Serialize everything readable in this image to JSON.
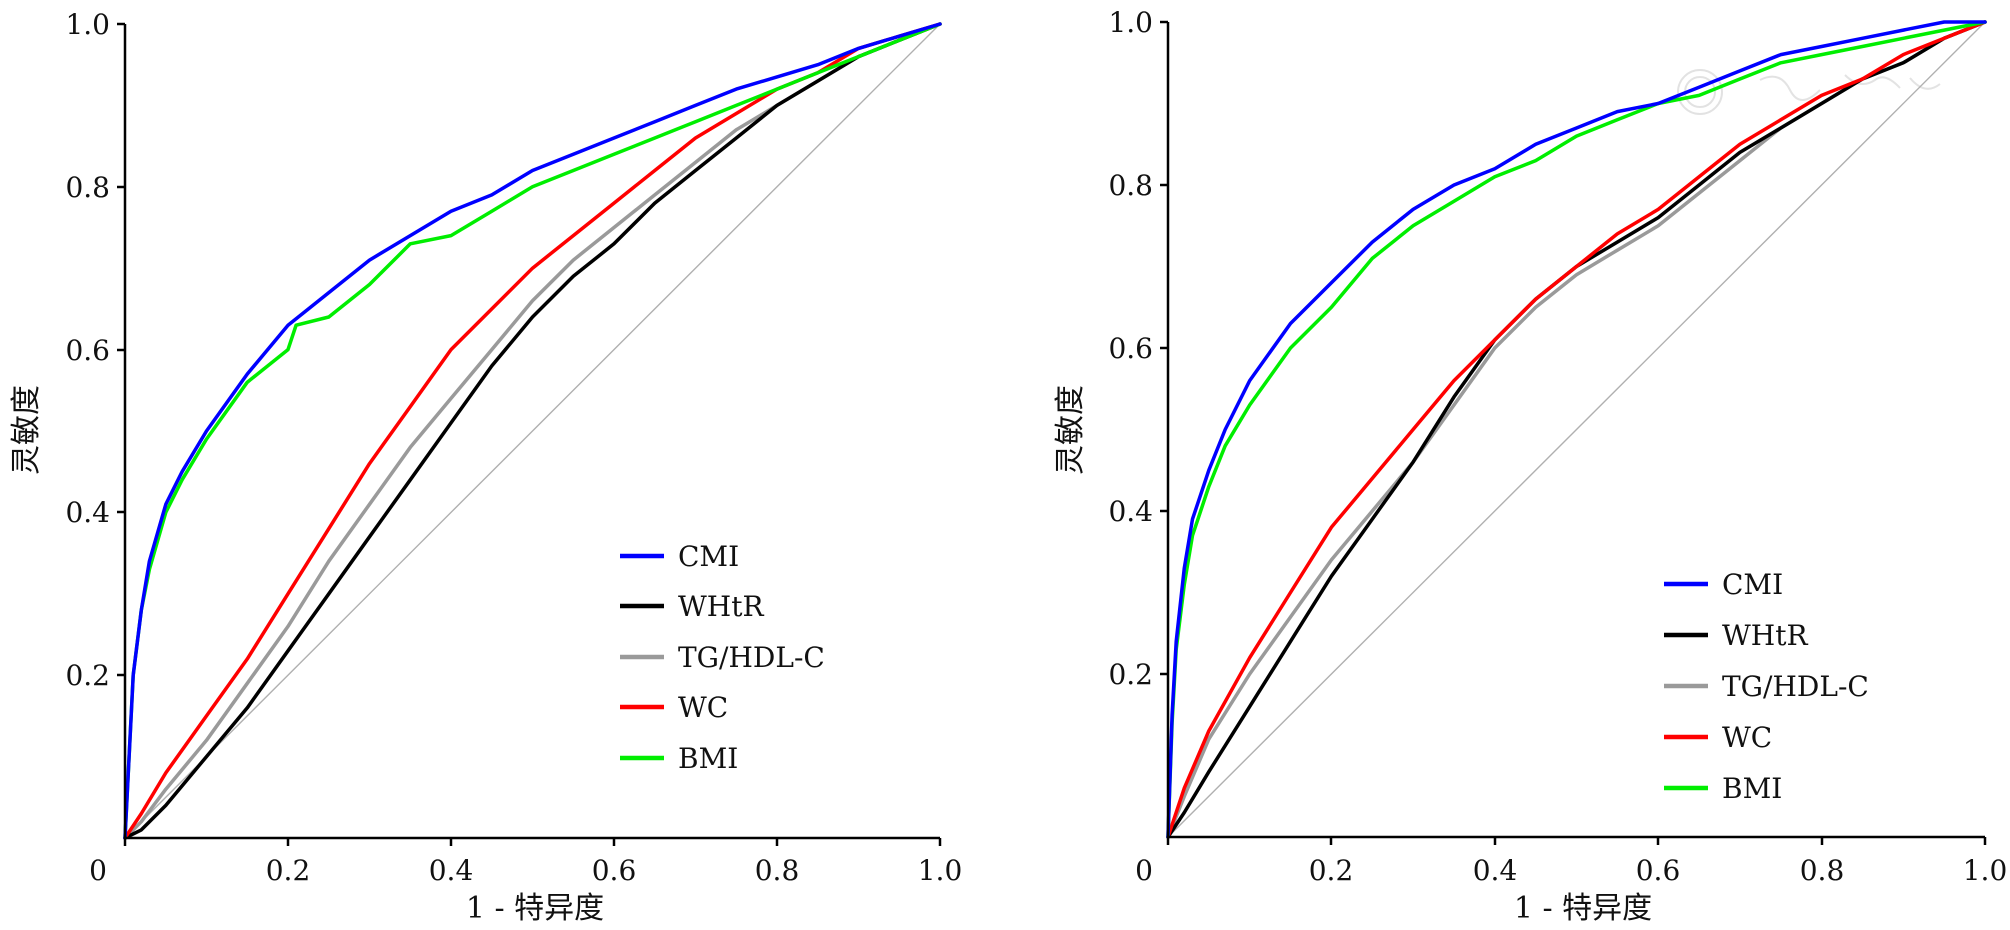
{
  "colors": {
    "CMI": "#0000ff",
    "WHtR": "#000000",
    "TG/HDL-C": "#9a9a9a",
    "WC": "#ff0000",
    "BMI": "#00ee00",
    "reference": "#b0b0b0"
  },
  "chart_data": [
    {
      "type": "line",
      "title": "",
      "xlabel": "1 - 特异度",
      "ylabel": "灵敏度",
      "xlim": [
        0,
        1
      ],
      "ylim": [
        0,
        1
      ],
      "x_tick_labels": [
        "0",
        "0.2",
        "0.4",
        "0.6",
        "0.8",
        "1.0"
      ],
      "y_tick_labels": [
        "0.2",
        "0.4",
        "0.6",
        "0.8",
        "1.0"
      ],
      "grid": false,
      "legend_position": "bottom-right",
      "reference_line": [
        [
          0,
          0
        ],
        [
          1,
          1
        ]
      ],
      "series": [
        {
          "name": "CMI",
          "points": [
            [
              0,
              0
            ],
            [
              0.005,
              0.1
            ],
            [
              0.01,
              0.2
            ],
            [
              0.02,
              0.28
            ],
            [
              0.03,
              0.34
            ],
            [
              0.05,
              0.41
            ],
            [
              0.07,
              0.45
            ],
            [
              0.1,
              0.5
            ],
            [
              0.15,
              0.57
            ],
            [
              0.2,
              0.63
            ],
            [
              0.25,
              0.67
            ],
            [
              0.3,
              0.71
            ],
            [
              0.35,
              0.74
            ],
            [
              0.4,
              0.77
            ],
            [
              0.45,
              0.79
            ],
            [
              0.5,
              0.82
            ],
            [
              0.55,
              0.84
            ],
            [
              0.6,
              0.86
            ],
            [
              0.65,
              0.88
            ],
            [
              0.7,
              0.9
            ],
            [
              0.75,
              0.92
            ],
            [
              0.8,
              0.935
            ],
            [
              0.85,
              0.95
            ],
            [
              0.9,
              0.97
            ],
            [
              0.95,
              0.985
            ],
            [
              1,
              1
            ]
          ]
        },
        {
          "name": "WHtR",
          "points": [
            [
              0,
              0
            ],
            [
              0.02,
              0.01
            ],
            [
              0.05,
              0.04
            ],
            [
              0.1,
              0.1
            ],
            [
              0.15,
              0.16
            ],
            [
              0.2,
              0.23
            ],
            [
              0.25,
              0.3
            ],
            [
              0.3,
              0.37
            ],
            [
              0.35,
              0.44
            ],
            [
              0.4,
              0.51
            ],
            [
              0.45,
              0.58
            ],
            [
              0.5,
              0.64
            ],
            [
              0.55,
              0.69
            ],
            [
              0.6,
              0.73
            ],
            [
              0.65,
              0.78
            ],
            [
              0.7,
              0.82
            ],
            [
              0.75,
              0.86
            ],
            [
              0.8,
              0.9
            ],
            [
              0.85,
              0.93
            ],
            [
              0.9,
              0.96
            ],
            [
              0.95,
              0.98
            ],
            [
              1,
              1
            ]
          ]
        },
        {
          "name": "TG/HDL-C",
          "points": [
            [
              0,
              0
            ],
            [
              0.02,
              0.02
            ],
            [
              0.05,
              0.06
            ],
            [
              0.1,
              0.12
            ],
            [
              0.15,
              0.19
            ],
            [
              0.2,
              0.26
            ],
            [
              0.25,
              0.34
            ],
            [
              0.3,
              0.41
            ],
            [
              0.35,
              0.48
            ],
            [
              0.4,
              0.54
            ],
            [
              0.45,
              0.6
            ],
            [
              0.5,
              0.66
            ],
            [
              0.55,
              0.71
            ],
            [
              0.6,
              0.75
            ],
            [
              0.65,
              0.79
            ],
            [
              0.7,
              0.83
            ],
            [
              0.75,
              0.87
            ],
            [
              0.8,
              0.9
            ],
            [
              0.85,
              0.93
            ],
            [
              0.9,
              0.96
            ],
            [
              0.95,
              0.98
            ],
            [
              1,
              1
            ]
          ]
        },
        {
          "name": "WC",
          "points": [
            [
              0,
              0
            ],
            [
              0.02,
              0.03
            ],
            [
              0.05,
              0.08
            ],
            [
              0.1,
              0.15
            ],
            [
              0.15,
              0.22
            ],
            [
              0.2,
              0.3
            ],
            [
              0.25,
              0.38
            ],
            [
              0.3,
              0.46
            ],
            [
              0.35,
              0.53
            ],
            [
              0.4,
              0.6
            ],
            [
              0.45,
              0.65
            ],
            [
              0.5,
              0.7
            ],
            [
              0.55,
              0.74
            ],
            [
              0.6,
              0.78
            ],
            [
              0.65,
              0.82
            ],
            [
              0.7,
              0.86
            ],
            [
              0.75,
              0.89
            ],
            [
              0.8,
              0.92
            ],
            [
              0.85,
              0.94
            ],
            [
              0.9,
              0.97
            ],
            [
              0.95,
              0.985
            ],
            [
              1,
              1
            ]
          ]
        },
        {
          "name": "BMI",
          "points": [
            [
              0,
              0
            ],
            [
              0.005,
              0.1
            ],
            [
              0.01,
              0.2
            ],
            [
              0.02,
              0.28
            ],
            [
              0.03,
              0.33
            ],
            [
              0.05,
              0.4
            ],
            [
              0.07,
              0.44
            ],
            [
              0.1,
              0.49
            ],
            [
              0.15,
              0.56
            ],
            [
              0.2,
              0.6
            ],
            [
              0.21,
              0.63
            ],
            [
              0.25,
              0.64
            ],
            [
              0.3,
              0.68
            ],
            [
              0.35,
              0.73
            ],
            [
              0.4,
              0.74
            ],
            [
              0.45,
              0.77
            ],
            [
              0.5,
              0.8
            ],
            [
              0.55,
              0.82
            ],
            [
              0.6,
              0.84
            ],
            [
              0.65,
              0.86
            ],
            [
              0.7,
              0.88
            ],
            [
              0.75,
              0.9
            ],
            [
              0.8,
              0.92
            ],
            [
              0.85,
              0.94
            ],
            [
              0.9,
              0.96
            ],
            [
              0.95,
              0.98
            ],
            [
              1,
              1
            ]
          ]
        }
      ]
    },
    {
      "type": "line",
      "title": "",
      "xlabel": "1 - 特异度",
      "ylabel": "灵敏度",
      "xlim": [
        0,
        1
      ],
      "ylim": [
        0,
        1
      ],
      "x_tick_labels": [
        "0",
        "0.2",
        "0.4",
        "0.6",
        "0.8",
        "1.0"
      ],
      "y_tick_labels": [
        "0.2",
        "0.4",
        "0.6",
        "0.8",
        "1.0"
      ],
      "grid": false,
      "legend_position": "bottom-right",
      "reference_line": [
        [
          0,
          0
        ],
        [
          1,
          1
        ]
      ],
      "series": [
        {
          "name": "CMI",
          "points": [
            [
              0,
              0
            ],
            [
              0.005,
              0.15
            ],
            [
              0.01,
              0.24
            ],
            [
              0.02,
              0.33
            ],
            [
              0.03,
              0.39
            ],
            [
              0.05,
              0.45
            ],
            [
              0.07,
              0.5
            ],
            [
              0.1,
              0.56
            ],
            [
              0.15,
              0.63
            ],
            [
              0.2,
              0.68
            ],
            [
              0.25,
              0.73
            ],
            [
              0.3,
              0.77
            ],
            [
              0.35,
              0.8
            ],
            [
              0.4,
              0.82
            ],
            [
              0.45,
              0.85
            ],
            [
              0.5,
              0.87
            ],
            [
              0.55,
              0.89
            ],
            [
              0.6,
              0.9
            ],
            [
              0.65,
              0.92
            ],
            [
              0.7,
              0.94
            ],
            [
              0.75,
              0.96
            ],
            [
              0.8,
              0.97
            ],
            [
              0.85,
              0.98
            ],
            [
              0.9,
              0.99
            ],
            [
              0.95,
              1.0
            ],
            [
              1,
              1
            ]
          ]
        },
        {
          "name": "WHtR",
          "points": [
            [
              0,
              0
            ],
            [
              0.02,
              0.03
            ],
            [
              0.05,
              0.08
            ],
            [
              0.1,
              0.16
            ],
            [
              0.15,
              0.24
            ],
            [
              0.2,
              0.32
            ],
            [
              0.25,
              0.39
            ],
            [
              0.3,
              0.46
            ],
            [
              0.35,
              0.54
            ],
            [
              0.4,
              0.61
            ],
            [
              0.45,
              0.66
            ],
            [
              0.5,
              0.7
            ],
            [
              0.55,
              0.73
            ],
            [
              0.6,
              0.76
            ],
            [
              0.65,
              0.8
            ],
            [
              0.7,
              0.84
            ],
            [
              0.75,
              0.87
            ],
            [
              0.8,
              0.9
            ],
            [
              0.85,
              0.93
            ],
            [
              0.9,
              0.95
            ],
            [
              0.95,
              0.98
            ],
            [
              1,
              1
            ]
          ]
        },
        {
          "name": "TG/HDL-C",
          "points": [
            [
              0,
              0
            ],
            [
              0.02,
              0.05
            ],
            [
              0.05,
              0.12
            ],
            [
              0.1,
              0.2
            ],
            [
              0.15,
              0.27
            ],
            [
              0.2,
              0.34
            ],
            [
              0.25,
              0.4
            ],
            [
              0.3,
              0.46
            ],
            [
              0.35,
              0.53
            ],
            [
              0.4,
              0.6
            ],
            [
              0.45,
              0.65
            ],
            [
              0.5,
              0.69
            ],
            [
              0.55,
              0.72
            ],
            [
              0.6,
              0.75
            ],
            [
              0.65,
              0.79
            ],
            [
              0.7,
              0.83
            ],
            [
              0.75,
              0.87
            ],
            [
              0.8,
              0.9
            ],
            [
              0.85,
              0.93
            ],
            [
              0.9,
              0.95
            ],
            [
              0.95,
              0.98
            ],
            [
              1,
              1
            ]
          ]
        },
        {
          "name": "WC",
          "points": [
            [
              0,
              0
            ],
            [
              0.02,
              0.06
            ],
            [
              0.05,
              0.13
            ],
            [
              0.1,
              0.22
            ],
            [
              0.15,
              0.3
            ],
            [
              0.2,
              0.38
            ],
            [
              0.25,
              0.44
            ],
            [
              0.3,
              0.5
            ],
            [
              0.35,
              0.56
            ],
            [
              0.4,
              0.61
            ],
            [
              0.45,
              0.66
            ],
            [
              0.5,
              0.7
            ],
            [
              0.55,
              0.74
            ],
            [
              0.6,
              0.77
            ],
            [
              0.65,
              0.81
            ],
            [
              0.7,
              0.85
            ],
            [
              0.75,
              0.88
            ],
            [
              0.8,
              0.91
            ],
            [
              0.85,
              0.93
            ],
            [
              0.9,
              0.96
            ],
            [
              0.95,
              0.98
            ],
            [
              1,
              1
            ]
          ]
        },
        {
          "name": "BMI",
          "points": [
            [
              0,
              0
            ],
            [
              0.005,
              0.14
            ],
            [
              0.01,
              0.23
            ],
            [
              0.02,
              0.31
            ],
            [
              0.03,
              0.37
            ],
            [
              0.05,
              0.43
            ],
            [
              0.07,
              0.48
            ],
            [
              0.1,
              0.53
            ],
            [
              0.15,
              0.6
            ],
            [
              0.2,
              0.65
            ],
            [
              0.25,
              0.71
            ],
            [
              0.3,
              0.75
            ],
            [
              0.35,
              0.78
            ],
            [
              0.4,
              0.81
            ],
            [
              0.45,
              0.83
            ],
            [
              0.5,
              0.86
            ],
            [
              0.55,
              0.88
            ],
            [
              0.6,
              0.9
            ],
            [
              0.65,
              0.91
            ],
            [
              0.7,
              0.93
            ],
            [
              0.75,
              0.95
            ],
            [
              0.8,
              0.96
            ],
            [
              0.85,
              0.97
            ],
            [
              0.9,
              0.98
            ],
            [
              0.95,
              0.99
            ],
            [
              1,
              1
            ]
          ]
        }
      ]
    }
  ]
}
